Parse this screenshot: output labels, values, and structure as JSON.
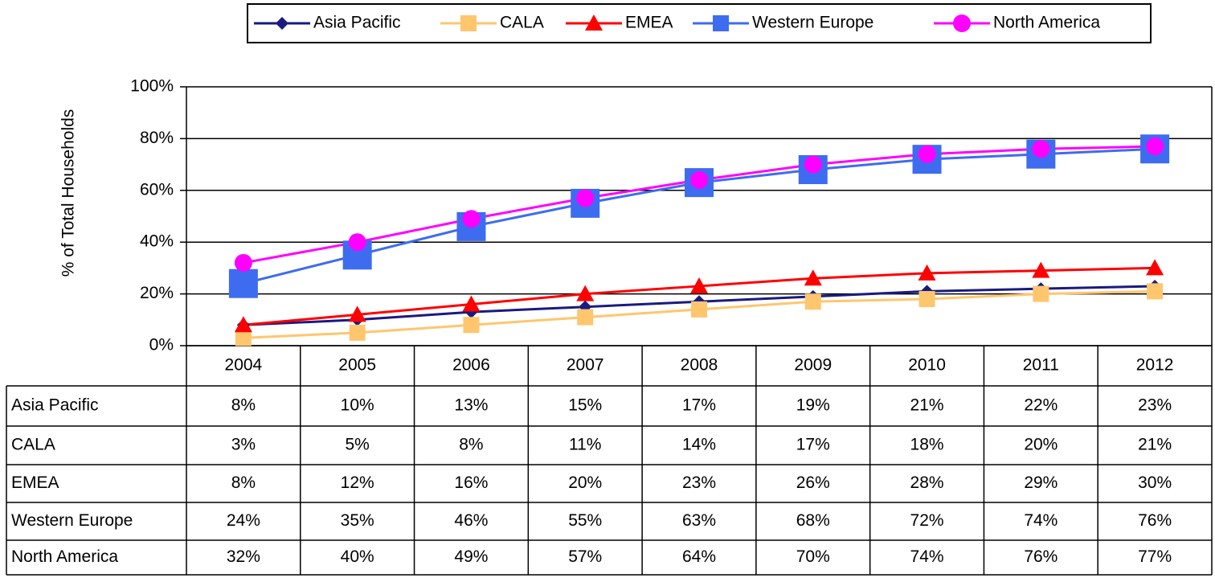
{
  "chart_data": {
    "type": "line",
    "y_label": "% of Total Households",
    "categories": [
      "2004",
      "2005",
      "2006",
      "2007",
      "2008",
      "2009",
      "2010",
      "2011",
      "2012"
    ],
    "series": [
      {
        "name": "Asia Pacific",
        "color": "#1a1a80",
        "marker": "diamond",
        "values": [
          8,
          10,
          13,
          15,
          17,
          19,
          21,
          22,
          23
        ],
        "value_labels": [
          "8%",
          "10%",
          "13%",
          "15%",
          "17%",
          "19%",
          "21%",
          "22%",
          "23%"
        ]
      },
      {
        "name": "CALA",
        "color": "#ffc66e",
        "marker": "square",
        "values": [
          3,
          5,
          8,
          11,
          14,
          17,
          18,
          20,
          21
        ],
        "value_labels": [
          "3%",
          "5%",
          "8%",
          "11%",
          "14%",
          "17%",
          "18%",
          "20%",
          "21%"
        ]
      },
      {
        "name": "EMEA",
        "color": "#ff0000",
        "marker": "triangle",
        "values": [
          8,
          12,
          16,
          20,
          23,
          26,
          28,
          29,
          30
        ],
        "value_labels": [
          "8%",
          "12%",
          "16%",
          "20%",
          "23%",
          "26%",
          "28%",
          "29%",
          "30%"
        ]
      },
      {
        "name": "Western Europe",
        "color": "#3d6cf0",
        "marker": "bigsquare",
        "values": [
          24,
          35,
          46,
          55,
          63,
          68,
          72,
          74,
          76
        ],
        "value_labels": [
          "24%",
          "35%",
          "46%",
          "55%",
          "63%",
          "68%",
          "72%",
          "74%",
          "76%"
        ]
      },
      {
        "name": "North America",
        "color": "#ff00ff",
        "marker": "circle",
        "values": [
          32,
          40,
          49,
          57,
          64,
          70,
          74,
          76,
          77
        ],
        "value_labels": [
          "32%",
          "40%",
          "49%",
          "57%",
          "64%",
          "70%",
          "74%",
          "76%",
          "77%"
        ]
      }
    ],
    "ylim": [
      0,
      100
    ],
    "yticks": [
      {
        "value": 0,
        "label": "0%"
      },
      {
        "value": 20,
        "label": "20%"
      },
      {
        "value": 40,
        "label": "40%"
      },
      {
        "value": 60,
        "label": "60%"
      },
      {
        "value": 80,
        "label": "80%"
      },
      {
        "value": 100,
        "label": "100%"
      }
    ],
    "grid": true,
    "legend": "top"
  }
}
